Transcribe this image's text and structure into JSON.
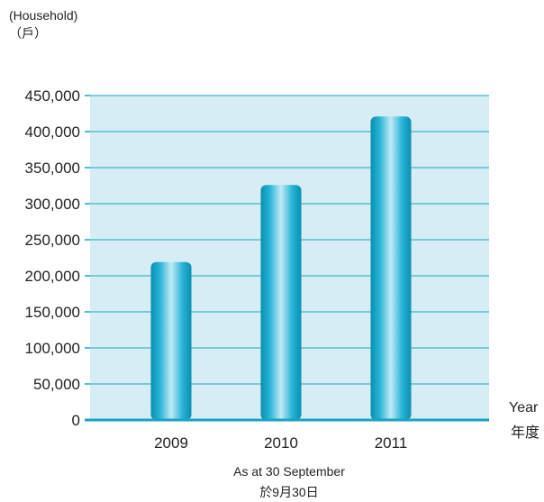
{
  "chart_data": {
    "type": "bar",
    "categories": [
      "2009",
      "2010",
      "2011"
    ],
    "values": [
      219000,
      326000,
      421000
    ],
    "ylim": [
      0,
      450000
    ],
    "yticks": [
      0,
      50000,
      100000,
      150000,
      200000,
      250000,
      300000,
      350000,
      400000,
      450000
    ],
    "ytick_labels": [
      "0",
      "50,000",
      "100,000",
      "150,000",
      "200,000",
      "250,000",
      "300,000",
      "350,000",
      "400,000",
      "450,000"
    ],
    "ylabel": "(Household)",
    "ylabel_zh": "（戶）",
    "xlabel": "Year",
    "xlabel_zh": "年度",
    "note": "As at 30 September",
    "note_zh": "於9月30日",
    "grid": true,
    "colors": {
      "plot_background": "#d6edf5",
      "gridline": "#1aa3c4",
      "bar_dark": "#0a8fb0",
      "bar_mid": "#27b3d6",
      "bar_light": "#bfeaf6"
    }
  }
}
